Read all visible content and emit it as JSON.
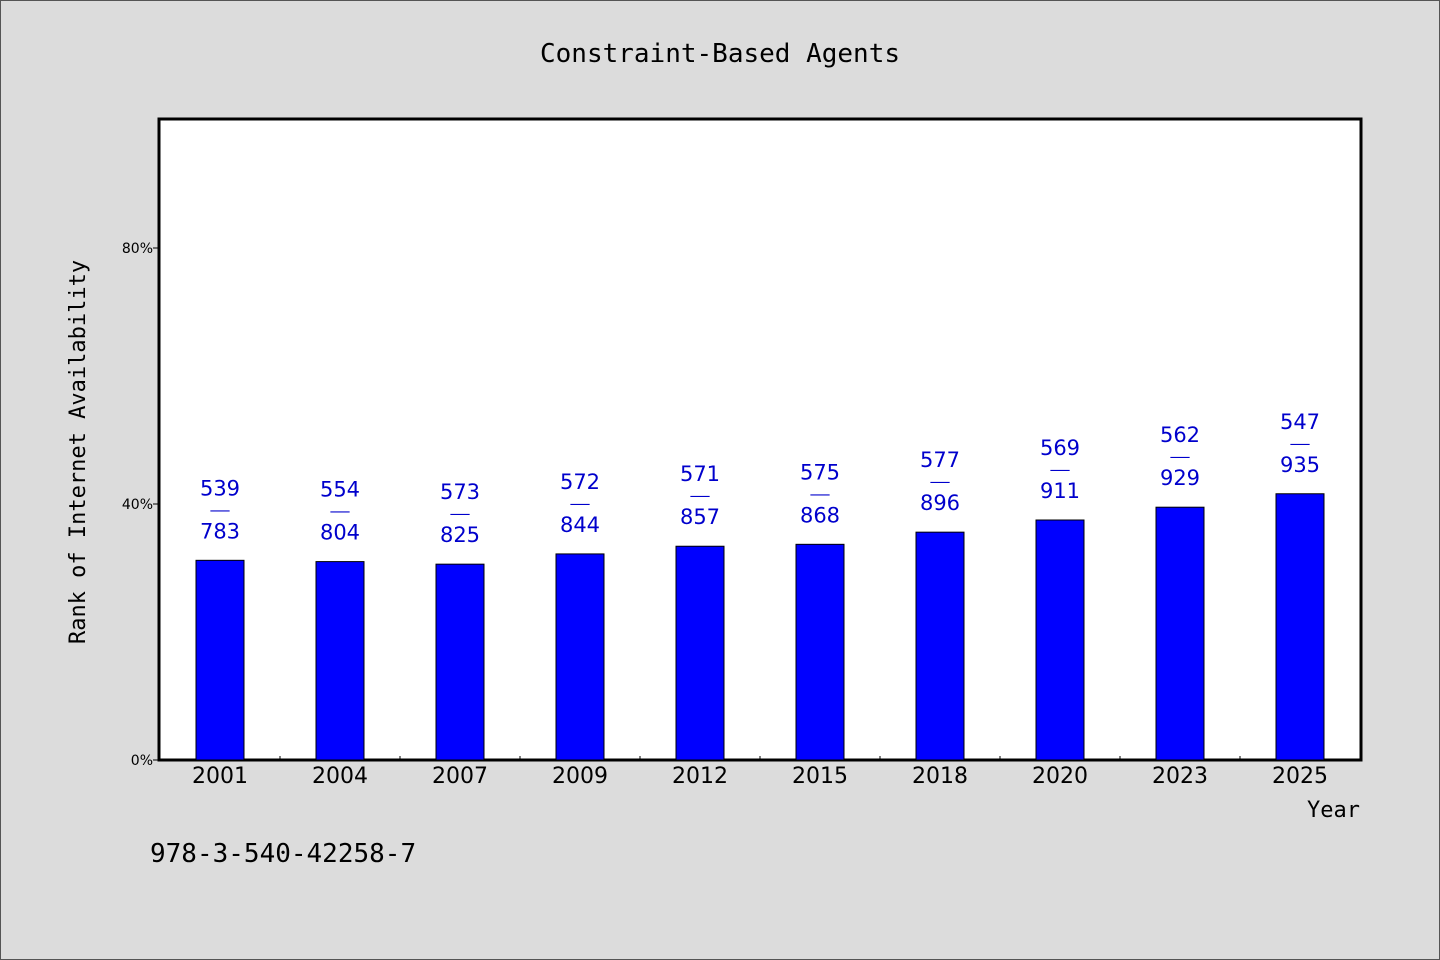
{
  "chart_data": {
    "type": "bar",
    "title": "Constraint-Based Agents",
    "xlabel": "Year",
    "ylabel": "Rank of Internet Availability",
    "categories": [
      "2001",
      "2004",
      "2007",
      "2009",
      "2012",
      "2015",
      "2018",
      "2020",
      "2023",
      "2025"
    ],
    "values": [
      31.2,
      31.0,
      30.6,
      32.2,
      33.4,
      33.7,
      35.6,
      37.5,
      39.5,
      41.6
    ],
    "bar_labels": [
      {
        "top": "539",
        "bottom": "783"
      },
      {
        "top": "554",
        "bottom": "804"
      },
      {
        "top": "573",
        "bottom": "825"
      },
      {
        "top": "572",
        "bottom": "844"
      },
      {
        "top": "571",
        "bottom": "857"
      },
      {
        "top": "575",
        "bottom": "868"
      },
      {
        "top": "577",
        "bottom": "896"
      },
      {
        "top": "569",
        "bottom": "911"
      },
      {
        "top": "562",
        "bottom": "929"
      },
      {
        "top": "547",
        "bottom": "935"
      }
    ],
    "label_separator": "——",
    "yticks": [
      0,
      40,
      80
    ],
    "ytick_labels": [
      "0%",
      "40%",
      "80%"
    ],
    "ylim": [
      0,
      100
    ],
    "grid": false,
    "bar_color": "#0000ff",
    "label_color": "#0000cc"
  },
  "footer_code": "978-3-540-42258-7"
}
